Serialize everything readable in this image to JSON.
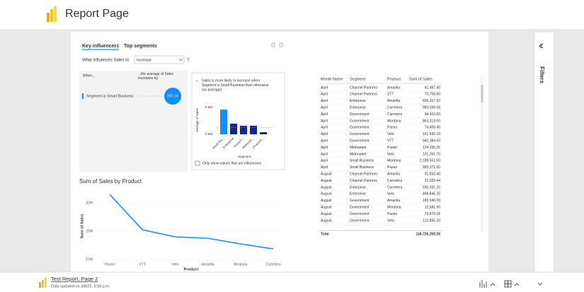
{
  "header": {
    "title": "Report Page"
  },
  "filters": {
    "label": "Filters"
  },
  "key_influencers": {
    "tabs": [
      "Key influencers",
      "Top segments"
    ],
    "question": "What influences Sales to",
    "dropdown": "Increase",
    "help": "?",
    "when": "When...",
    "effect": "...the average of Sales increases by",
    "factor": "Segment is Small Business",
    "bubble": "297.1K",
    "explanation": [
      "Sales is more likely to increase when",
      "Segment is Small Business than otherwise",
      "(on average)."
    ],
    "checkbox": "Only show values that are influencers",
    "chart": {
      "type": "bar",
      "y_label": "Average of Sales",
      "x_label": "Segment",
      "categories": [
        "Small Bu...",
        "Enterprise",
        "Govern...",
        "Midmark...",
        "Channel..."
      ],
      "values": [
        460000,
        200000,
        160000,
        160000,
        40000
      ],
      "colors": [
        "#118dff",
        "#12239e",
        "#12239e",
        "#12239e",
        "#12239e"
      ],
      "average": 130000,
      "ylim": [
        0,
        500000
      ],
      "yticks": [
        {
          "value": 0,
          "label": "0.0M"
        },
        {
          "value": 500000,
          "label": "0.5M"
        }
      ]
    }
  },
  "line_chart": {
    "type": "line",
    "title": "Sum of Sales by Product",
    "x_label": "Product",
    "y_label": "Sum of Sales",
    "categories": [
      "Paseo",
      "VTT",
      "Velo",
      "Amarilla",
      "Montana",
      "Carretera"
    ],
    "values": [
      33000000,
      20500000,
      18000000,
      17500000,
      15500000,
      13750000
    ],
    "color": "#118dff",
    "ylim": [
      10000000,
      34000000
    ],
    "yticks": [
      {
        "value": 10000000,
        "label": "10M"
      },
      {
        "value": 20000000,
        "label": "20M"
      },
      {
        "value": 30000000,
        "label": "30M"
      }
    ]
  },
  "table": {
    "columns": [
      "Month Name",
      "Segment",
      "Product",
      "Sum of Sales"
    ],
    "rows": [
      [
        "April",
        "Channel Partners",
        "Amarilla",
        "61,457.40"
      ],
      [
        "April",
        "Channel Partners",
        "VTT",
        "75,759.90"
      ],
      [
        "April",
        "Enterprise",
        "Amarilla",
        "656,317.50"
      ],
      [
        "April",
        "Enterprise",
        "Carretera",
        "993,099.38"
      ],
      [
        "April",
        "Government",
        "Carretera",
        "94,410.60"
      ],
      [
        "April",
        "Government",
        "Montana",
        "863,319.00"
      ],
      [
        "April",
        "Government",
        "Paseo",
        "74,400.45"
      ],
      [
        "April",
        "Government",
        "Velo",
        "161,630.10"
      ],
      [
        "April",
        "Government",
        "VTT",
        "942,384.50"
      ],
      [
        "April",
        "Midmarket",
        "Paseo",
        "124,336.35"
      ],
      [
        "April",
        "Midmarket",
        "Velo",
        "101,261.70"
      ],
      [
        "April",
        "Small Business",
        "Montana",
        "2,189,551.50"
      ],
      [
        "April",
        "Small Business",
        "Paseo",
        "865,371.00"
      ],
      [
        "August",
        "Channel Partners",
        "Amarilla",
        "91,833.40"
      ],
      [
        "August",
        "Channel Partners",
        "Carretera",
        "21,025.44"
      ],
      [
        "August",
        "Enterprise",
        "Carretera",
        "595,931.25"
      ],
      [
        "August",
        "Enterprise",
        "Velo",
        "466,845.25"
      ],
      [
        "August",
        "Government",
        "Amarilla",
        "183,540.00"
      ],
      [
        "August",
        "Government",
        "Montana",
        "12,681.90"
      ],
      [
        "August",
        "Government",
        "Paseo",
        "79,870.28"
      ],
      [
        "August",
        "Government",
        "Velo",
        "113,855.20"
      ]
    ],
    "total": [
      "Total",
      "118,726,350.26"
    ]
  },
  "footer": {
    "title": "Test Report, Page 2",
    "updated": "Data updated on 3/8/23, 5:56 p.m."
  }
}
